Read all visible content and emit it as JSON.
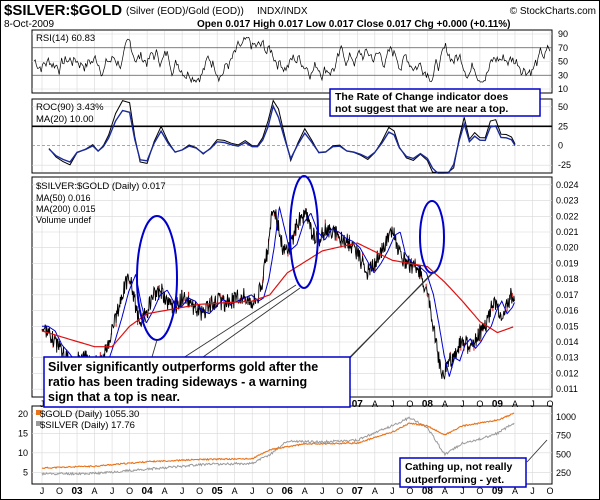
{
  "chart_data": {
    "type": "line",
    "header": {
      "symbol": "$SILVER:$GOLD",
      "description": "(Silver (EOD)/Gold (EOD))",
      "exchange": "INDX/INDX",
      "watermark": "© StockCharts.com",
      "date": "8-Oct-2009",
      "ohlc": "Open 0.017  High 0.017  Low 0.017  Close 0.017  Chg +0.000 (+0.11%)"
    },
    "x_ticks": [
      "J",
      "O",
      "03",
      "A",
      "J",
      "O",
      "04",
      "A",
      "J",
      "O",
      "05",
      "A",
      "J",
      "O",
      "06",
      "A",
      "J",
      "O",
      "07",
      "A",
      "J",
      "O",
      "08",
      "A",
      "J",
      "O",
      "09",
      "A",
      "J",
      "O"
    ],
    "rsi": {
      "label": "RSI(14) 60.83",
      "yticks": [
        90,
        70,
        50,
        30,
        10
      ],
      "ylim": [
        10,
        90
      ],
      "overbought": 70,
      "oversold": 30
    },
    "roc": {
      "label": "ROC(90) 3.43%",
      "ma_label": "MA(20) 10.00",
      "yticks": [
        50,
        25,
        0,
        -25
      ],
      "ylim": [
        -35,
        60
      ],
      "annotation": [
        "The Rate of Change indicator does",
        "not suggest that we are near a top."
      ]
    },
    "price": {
      "label": "$SILVER:$GOLD (Daily) 0.017",
      "ma50_label": "MA(50) 0.016",
      "ma200_label": "MA(200) 0.015",
      "volume_label": "Volume undef",
      "yticks": [
        0.024,
        0.023,
        0.022,
        0.021,
        0.02,
        0.019,
        0.018,
        0.017,
        0.016,
        0.015,
        0.014,
        0.013,
        0.012,
        0.011
      ],
      "ylim": [
        0.0105,
        0.0245
      ],
      "anchors": [
        [
          0,
          0.015
        ],
        [
          0.4,
          0.0147
        ],
        [
          0.8,
          0.0138
        ],
        [
          1.2,
          0.0133
        ],
        [
          1.6,
          0.0127
        ],
        [
          2.0,
          0.0131
        ],
        [
          2.5,
          0.013
        ],
        [
          2.9,
          0.0128
        ],
        [
          3.2,
          0.0126
        ],
        [
          3.5,
          0.013
        ],
        [
          3.8,
          0.014
        ],
        [
          4.2,
          0.0155
        ],
        [
          4.6,
          0.0172
        ],
        [
          5.0,
          0.0183
        ],
        [
          5.3,
          0.0165
        ],
        [
          5.6,
          0.0152
        ],
        [
          6.0,
          0.016
        ],
        [
          6.4,
          0.017
        ],
        [
          6.8,
          0.0173
        ],
        [
          7.2,
          0.0165
        ],
        [
          7.6,
          0.0162
        ],
        [
          8.0,
          0.0168
        ],
        [
          8.4,
          0.0166
        ],
        [
          8.8,
          0.016
        ],
        [
          9.2,
          0.0158
        ],
        [
          9.6,
          0.0163
        ],
        [
          10.0,
          0.0167
        ],
        [
          10.4,
          0.0164
        ],
        [
          10.8,
          0.0166
        ],
        [
          11.2,
          0.0168
        ],
        [
          11.6,
          0.017
        ],
        [
          12.0,
          0.0166
        ],
        [
          12.3,
          0.0168
        ],
        [
          12.6,
          0.018
        ],
        [
          12.9,
          0.02
        ],
        [
          13.2,
          0.0226
        ],
        [
          13.5,
          0.0212
        ],
        [
          13.8,
          0.0198
        ],
        [
          14.2,
          0.0202
        ],
        [
          14.6,
          0.0216
        ],
        [
          15.0,
          0.0222
        ],
        [
          15.4,
          0.021
        ],
        [
          15.8,
          0.0205
        ],
        [
          16.2,
          0.0212
        ],
        [
          16.6,
          0.021
        ],
        [
          17.0,
          0.0206
        ],
        [
          17.4,
          0.0204
        ],
        [
          17.8,
          0.02
        ],
        [
          18.2,
          0.0192
        ],
        [
          18.6,
          0.0184
        ],
        [
          19.0,
          0.019
        ],
        [
          19.4,
          0.0198
        ],
        [
          19.8,
          0.0208
        ],
        [
          20.1,
          0.021
        ],
        [
          20.4,
          0.0196
        ],
        [
          20.8,
          0.019
        ],
        [
          21.2,
          0.0188
        ],
        [
          21.6,
          0.0184
        ],
        [
          22.0,
          0.017
        ],
        [
          22.3,
          0.0152
        ],
        [
          22.6,
          0.0132
        ],
        [
          22.9,
          0.0118
        ],
        [
          23.2,
          0.013
        ],
        [
          23.5,
          0.0128
        ],
        [
          23.8,
          0.0138
        ],
        [
          24.1,
          0.0142
        ],
        [
          24.4,
          0.0136
        ],
        [
          24.7,
          0.014
        ],
        [
          25.0,
          0.0146
        ],
        [
          25.3,
          0.015
        ],
        [
          25.6,
          0.016
        ],
        [
          25.9,
          0.0166
        ],
        [
          26.2,
          0.0158
        ],
        [
          26.5,
          0.0162
        ],
        [
          26.8,
          0.017
        ],
        [
          27.0,
          0.0168
        ]
      ],
      "ma200_anchors": [
        [
          0,
          0.0147
        ],
        [
          3,
          0.0137
        ],
        [
          4,
          0.0137
        ],
        [
          5,
          0.015
        ],
        [
          6,
          0.0158
        ],
        [
          9,
          0.0164
        ],
        [
          12,
          0.0166
        ],
        [
          13,
          0.017
        ],
        [
          14,
          0.0184
        ],
        [
          16,
          0.0198
        ],
        [
          18,
          0.0203
        ],
        [
          20,
          0.0192
        ],
        [
          22,
          0.0188
        ],
        [
          23,
          0.0178
        ],
        [
          24,
          0.0166
        ],
        [
          25,
          0.0153
        ],
        [
          26,
          0.0146
        ],
        [
          27,
          0.015
        ]
      ],
      "callouts": [
        {
          "label": "ellipse-2004"
        },
        {
          "label": "ellipse-2006"
        },
        {
          "label": "ellipse-2008"
        }
      ],
      "annotation": [
        "Silver significantly outperforms gold after the",
        "ratio has been trading sideways -  a warning",
        "sign that a top is near."
      ]
    },
    "bottom": {
      "gold_label": "$GOLD (Daily) 1055.30",
      "silver_label": "$SILVER (Daily) 17.76",
      "left_yticks": [
        20,
        15,
        10,
        5
      ],
      "right_yticks": [
        1000,
        750,
        500,
        250
      ],
      "annotation": [
        "Cathing up, not really",
        "outperforming - yet."
      ],
      "series": [
        {
          "name": "$GOLD",
          "color": "#e8731a"
        },
        {
          "name": "$SILVER",
          "color": "#9a9a9a"
        }
      ]
    },
    "colors": {
      "frame": "#000000",
      "panel_bg": "#ffffff",
      "grid": "#d8d8d8",
      "blue": "#0000cc",
      "red": "#dd1111",
      "orange": "#e8731a",
      "gray": "#9a9a9a"
    }
  }
}
